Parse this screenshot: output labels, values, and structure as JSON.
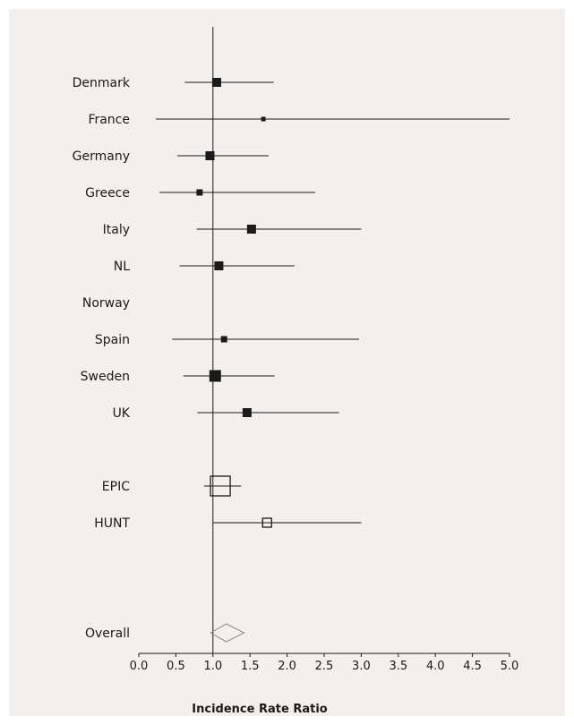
{
  "chart_data": {
    "type": "forest",
    "xlabel": "Incidence Rate Ratio",
    "xlim": [
      0.0,
      5.0
    ],
    "reference_line": 1.0,
    "xticks": [
      "0.0",
      "0.5",
      "1.0",
      "1.5",
      "2.0",
      "2.5",
      "3.0",
      "3.5",
      "4.0",
      "4.5",
      "5.0"
    ],
    "rows": [
      {
        "label": "Denmark",
        "estimate": 1.05,
        "lower": 0.62,
        "upper": 1.82,
        "weight": "medium",
        "marker": "filled-square"
      },
      {
        "label": "France",
        "estimate": 1.68,
        "lower": 0.23,
        "upper": 5.0,
        "weight": "tiny",
        "marker": "filled-square"
      },
      {
        "label": "Germany",
        "estimate": 0.96,
        "lower": 0.52,
        "upper": 1.75,
        "weight": "medium",
        "marker": "filled-square"
      },
      {
        "label": "Greece",
        "estimate": 0.82,
        "lower": 0.28,
        "upper": 2.38,
        "weight": "small",
        "marker": "filled-square"
      },
      {
        "label": "Italy",
        "estimate": 1.52,
        "lower": 0.78,
        "upper": 3.0,
        "weight": "medium",
        "marker": "filled-square"
      },
      {
        "label": "NL",
        "estimate": 1.08,
        "lower": 0.55,
        "upper": 2.1,
        "weight": "medium",
        "marker": "filled-square"
      },
      {
        "label": "Norway",
        "estimate": null,
        "lower": null,
        "upper": null,
        "weight": null,
        "marker": "none"
      },
      {
        "label": "Spain",
        "estimate": 1.15,
        "lower": 0.45,
        "upper": 2.97,
        "weight": "small",
        "marker": "filled-square"
      },
      {
        "label": "Sweden",
        "estimate": 1.03,
        "lower": 0.6,
        "upper": 1.83,
        "weight": "large",
        "marker": "filled-square"
      },
      {
        "label": "UK",
        "estimate": 1.46,
        "lower": 0.79,
        "upper": 2.7,
        "weight": "medium",
        "marker": "filled-square"
      },
      {
        "label": "EPIC",
        "estimate": 1.1,
        "lower": 0.88,
        "upper": 1.38,
        "weight": "xlarge",
        "marker": "open-square",
        "gap_before": true
      },
      {
        "label": "HUNT",
        "estimate": 1.73,
        "lower": 1.0,
        "upper": 3.0,
        "weight": "medium",
        "marker": "open-square"
      },
      {
        "label": "Overall",
        "estimate": 1.18,
        "lower": 0.97,
        "upper": 1.42,
        "weight": null,
        "marker": "diamond",
        "gap_before": true
      }
    ],
    "colors": {
      "background": "#f2efec",
      "ink": "#1a1a1a",
      "diamond": "#888888"
    }
  }
}
